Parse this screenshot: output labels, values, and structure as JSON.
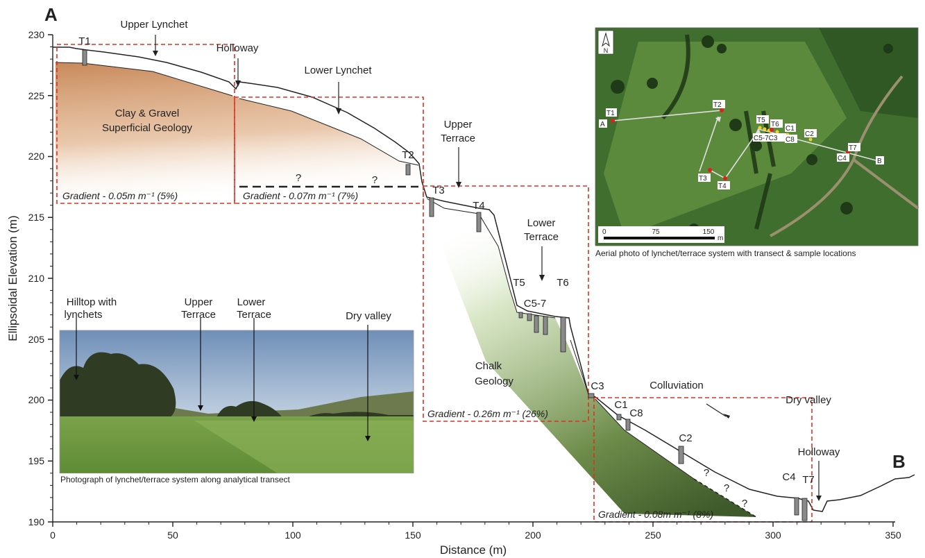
{
  "panel_labels": {
    "start": "A",
    "end": "B"
  },
  "axes": {
    "y_title": "Ellipsoidal Elevation (m)",
    "x_title": "Distance (m)",
    "x_ticks": [
      "0",
      "50",
      "100",
      "150",
      "200",
      "250",
      "300",
      "350"
    ],
    "y_ticks": [
      "230",
      "225",
      "220",
      "215",
      "210",
      "205",
      "200",
      "195",
      "190"
    ]
  },
  "features": {
    "upper_lynchet": "Upper Lynchet",
    "holloway_top": "Holloway",
    "lower_lynchet": "Lower Lynchet",
    "upper_terrace": [
      "Upper",
      "Terrace"
    ],
    "lower_terrace": [
      "Lower",
      "Terrace"
    ],
    "colluviation": "Colluviation",
    "dry_valley": "Dry valley",
    "holloway_bottom": "Holloway"
  },
  "geology": {
    "clay": [
      "Clay & Gravel",
      "Superficial Geology"
    ],
    "chalk": [
      "Chalk",
      "Geology"
    ]
  },
  "gradients": [
    "Gradient - 0.05m m⁻¹ (5%)",
    "Gradient - 0.07m m⁻¹ (7%)",
    "Gradient - 0.26m m⁻¹ (26%)",
    "Gradient - 0.08m m⁻¹ (8%)"
  ],
  "samples": {
    "T1": "T1",
    "T2": "T2",
    "T3": "T3",
    "T4": "T4",
    "T5": "T5",
    "T6": "T6",
    "T7": "T7",
    "C5_7": "C5-7",
    "C3": "C3",
    "C1": "C1",
    "C8": "C8",
    "C2": "C2",
    "C4": "C4"
  },
  "uncertain_mark": "?",
  "photo": {
    "caption": "Photograph of lynchet/terrace system along analytical transect",
    "hilltop": [
      "Hilltop with",
      "lynchets"
    ],
    "upper_terrace": [
      "Upper",
      "Terrace"
    ],
    "lower_terrace": [
      "Lower",
      "Terrace"
    ],
    "dry_valley": "Dry valley"
  },
  "aerial": {
    "caption": "Aerial photo of lynchet/terrace system with transect & sample locations",
    "north": "N",
    "scale_0": "0",
    "scale_75": "75",
    "scale_150": "150",
    "scale_unit": "m",
    "labels": {
      "T1": "T1",
      "A": "A",
      "T2": "T2",
      "T3": "T3",
      "T4": "T4",
      "T5": "T5",
      "T6": "T6",
      "C5_7C3": "C5-7C3",
      "C1": "C1",
      "C8": "C8",
      "C2": "C2",
      "T7": "T7",
      "C4": "C4",
      "B": "B"
    }
  },
  "colors": {
    "clay_top": "#c8895a",
    "chalk_top": "#5a7d3a",
    "gradient_box": "#e03020",
    "core": "#8a8a8a",
    "aerial_field": "#3f6e2e",
    "transect": "#d9d9d9",
    "sample_red": "#e02020",
    "sample_yellow": "#f2d22a"
  }
}
